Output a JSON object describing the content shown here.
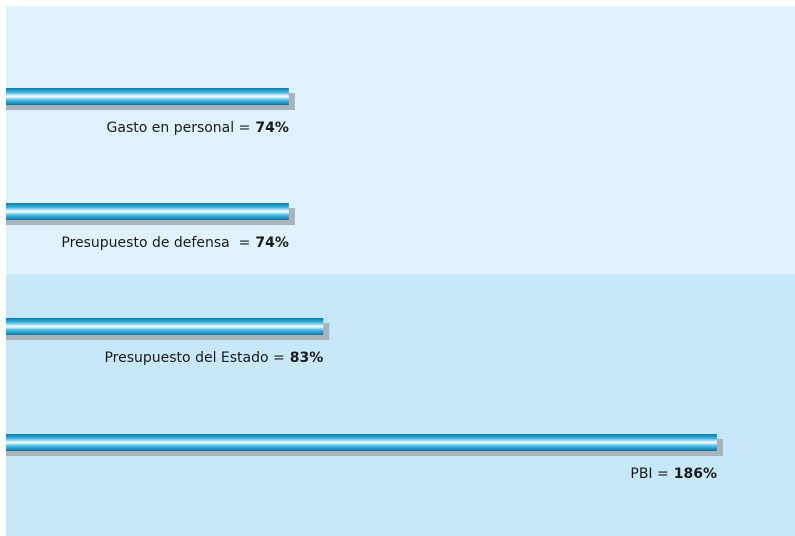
{
  "chart_data": {
    "type": "bar",
    "orientation": "horizontal",
    "categories": [
      "Gasto en personal =",
      "Presupuesto de defensa  =",
      "Presupuesto del Estado =",
      "PBI ="
    ],
    "values": [
      74,
      74,
      83,
      186
    ],
    "value_labels": [
      "74%",
      "74%",
      "83%",
      "186%"
    ],
    "color": "#1a9ccf"
  }
}
